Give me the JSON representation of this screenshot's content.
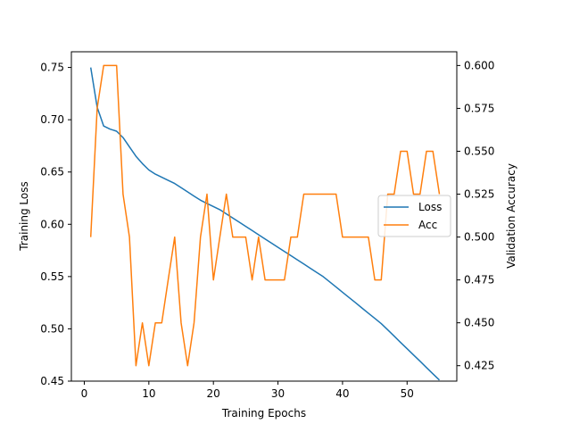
{
  "chart_data": {
    "type": "line",
    "xlabel": "Training Epochs",
    "ylabel_left": "Training Loss",
    "ylabel_right": "Validation Accuracy",
    "xlim": [
      -2,
      57.7
    ],
    "ylim_left": [
      0.45,
      0.765
    ],
    "ylim_right": [
      0.416,
      0.608
    ],
    "x_ticks": [
      0,
      10,
      20,
      30,
      40,
      50
    ],
    "y_ticks_left": [
      0.45,
      0.5,
      0.55,
      0.6,
      0.65,
      0.7,
      0.75
    ],
    "y_ticks_left_labels": [
      "0.45",
      "0.50",
      "0.55",
      "0.60",
      "0.65",
      "0.70",
      "0.75"
    ],
    "y_ticks_right": [
      0.425,
      0.45,
      0.475,
      0.5,
      0.525,
      0.55,
      0.575,
      0.6
    ],
    "y_ticks_right_labels": [
      "0.425",
      "0.450",
      "0.475",
      "0.500",
      "0.525",
      "0.550",
      "0.575",
      "0.600"
    ],
    "grid": false,
    "legend_position": "center-right",
    "x": [
      1,
      2,
      3,
      4,
      5,
      6,
      7,
      8,
      9,
      10,
      11,
      12,
      13,
      14,
      15,
      16,
      17,
      18,
      19,
      20,
      21,
      22,
      23,
      24,
      25,
      26,
      27,
      28,
      29,
      30,
      31,
      32,
      33,
      34,
      35,
      36,
      37,
      38,
      39,
      40,
      41,
      42,
      43,
      44,
      45,
      46,
      47,
      48,
      49,
      50,
      51,
      52,
      53,
      54,
      55
    ],
    "series": [
      {
        "name": "Loss",
        "axis": "left",
        "color": "#1f77b4",
        "values": [
          0.75,
          0.712,
          0.694,
          0.691,
          0.689,
          0.683,
          0.674,
          0.665,
          0.658,
          0.652,
          0.648,
          0.645,
          0.642,
          0.639,
          0.635,
          0.631,
          0.627,
          0.623,
          0.62,
          0.617,
          0.614,
          0.61,
          0.606,
          0.602,
          0.598,
          0.594,
          0.59,
          0.586,
          0.582,
          0.578,
          0.574,
          0.57,
          0.566,
          0.562,
          0.558,
          0.554,
          0.55,
          0.545,
          0.54,
          0.535,
          0.53,
          0.525,
          0.52,
          0.515,
          0.51,
          0.505,
          0.499,
          0.493,
          0.487,
          0.481,
          0.475,
          0.469,
          0.463,
          0.457,
          0.451
        ]
      },
      {
        "name": "Acc",
        "axis": "right",
        "color": "#ff7f0e",
        "values": [
          0.5,
          0.575,
          0.6,
          0.6,
          0.6,
          0.525,
          0.5,
          0.425,
          0.45,
          0.425,
          0.45,
          0.45,
          0.475,
          0.5,
          0.45,
          0.425,
          0.45,
          0.5,
          0.525,
          0.475,
          0.5,
          0.525,
          0.5,
          0.5,
          0.5,
          0.475,
          0.5,
          0.475,
          0.475,
          0.475,
          0.475,
          0.5,
          0.5,
          0.525,
          0.525,
          0.525,
          0.525,
          0.525,
          0.525,
          0.5,
          0.5,
          0.5,
          0.5,
          0.5,
          0.475,
          0.475,
          0.525,
          0.525,
          0.55,
          0.55,
          0.525,
          0.525,
          0.55,
          0.55,
          0.525
        ]
      }
    ]
  }
}
